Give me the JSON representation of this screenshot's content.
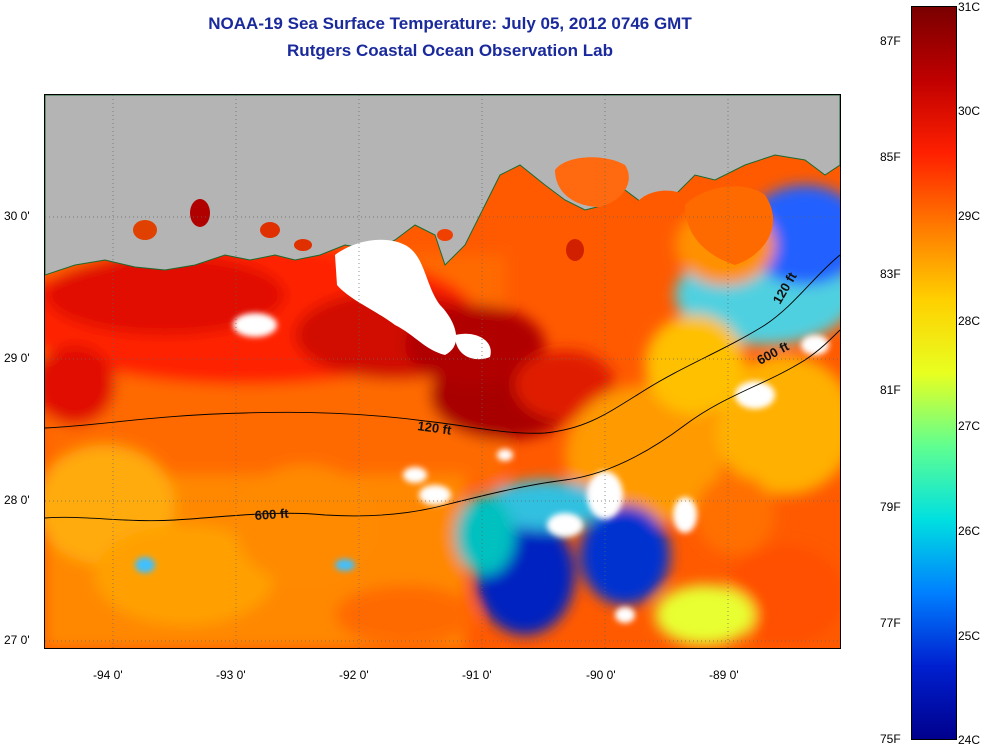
{
  "title_line1": "NOAA-19 Sea Surface Temperature:  July 05, 2012 0746 GMT",
  "title_line2": "Rutgers Coastal Ocean Observation Lab",
  "lon_labels": [
    "-94 0'",
    "-93 0'",
    "-92 0'",
    "-91 0'",
    "-90 0'",
    "-89 0'"
  ],
  "lat_labels": [
    "30 0'",
    "29 0'",
    "28 0'",
    "27 0'"
  ],
  "contour_labels": [
    "120 ft",
    "600 ft",
    "120 ft",
    "600 ft"
  ],
  "colorbar": {
    "celsius": [
      "31C",
      "30C",
      "29C",
      "28C",
      "27C",
      "26C",
      "25C",
      "24C"
    ],
    "fahrenheit": [
      "87F",
      "85F",
      "83F",
      "81F",
      "79F",
      "77F",
      "75F"
    ],
    "colors": [
      "#7a0000",
      "#c00000",
      "#ff2000",
      "#ff7a00",
      "#ffd000",
      "#e8ff20",
      "#60ff90",
      "#00e0e0",
      "#0080ff",
      "#0020d0",
      "#00008c"
    ]
  },
  "legend": {
    "land_color": "#b4b4b4",
    "cloud_color": "#ffffff"
  }
}
